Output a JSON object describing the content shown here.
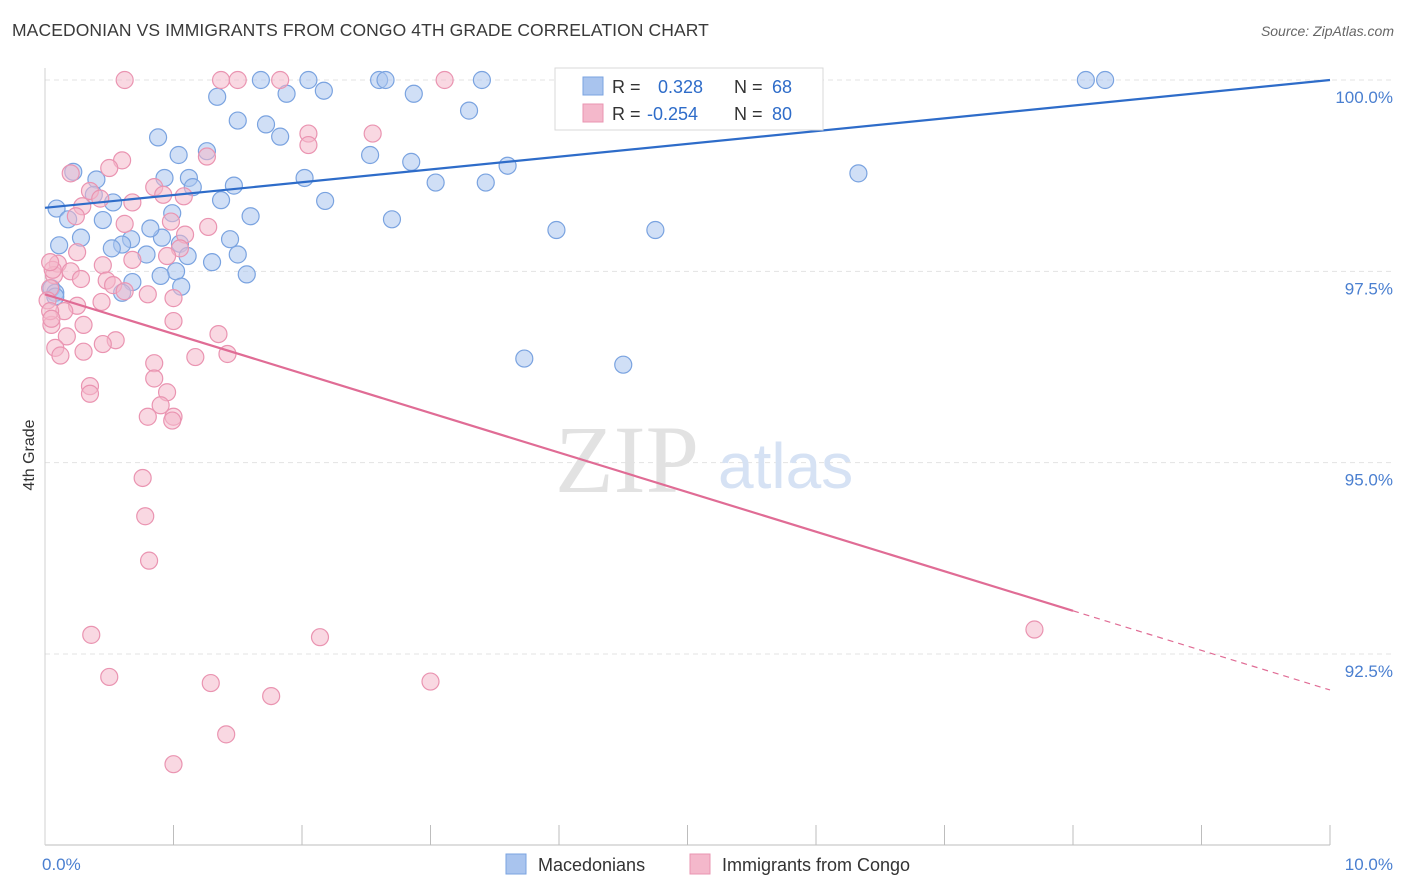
{
  "title": "MACEDONIAN VS IMMIGRANTS FROM CONGO 4TH GRADE CORRELATION CHART",
  "source": "Source: ZipAtlas.com",
  "watermark": {
    "zip": "ZIP",
    "atlas": "atlas"
  },
  "colors": {
    "blue_fill": "#a9c4ee",
    "blue_stroke": "#7aa3e0",
    "blue_line": "#2e6cc9",
    "pink_fill": "#f4b8cb",
    "pink_stroke": "#ea94b1",
    "pink_line": "#e06c95",
    "axis_text": "#4a7fd0",
    "grid": "#e3e3e3"
  },
  "legend": {
    "rows": [
      {
        "r_label": "R =",
        "r_value": "0.328",
        "n_label": "N =",
        "n_value": "68",
        "color": "blue"
      },
      {
        "r_label": "R =",
        "r_value": "-0.254",
        "n_label": "N =",
        "n_value": "80",
        "color": "pink"
      }
    ]
  },
  "bottom_legend": [
    {
      "label": "Macedonians",
      "color": "blue"
    },
    {
      "label": "Immigrants from Congo",
      "color": "pink"
    }
  ],
  "chart_data": {
    "type": "scatter",
    "title": "MACEDONIAN VS IMMIGRANTS FROM CONGO 4TH GRADE CORRELATION CHART",
    "xlabel": "",
    "ylabel": "4th Grade",
    "xlim": [
      0,
      10
    ],
    "ylim": [
      90.5,
      100.3
    ],
    "x_tick_labels": [
      {
        "value": 0,
        "label": "0.0%"
      },
      {
        "value": 10,
        "label": "10.0%"
      }
    ],
    "x_minor_ticks": [
      1,
      2,
      3,
      4,
      5,
      6,
      7,
      8,
      9,
      10
    ],
    "y_ticks": [
      {
        "value": 100,
        "label": "100.0%"
      },
      {
        "value": 97.5,
        "label": "97.5%"
      },
      {
        "value": 95,
        "label": "95.0%"
      },
      {
        "value": 92.5,
        "label": "92.5%"
      }
    ],
    "grid": true,
    "legend_position": "top-center",
    "series": [
      {
        "name": "Macedonians",
        "color": "blue",
        "trend": {
          "x": [
            0,
            10
          ],
          "y": [
            98.33,
            100.0
          ],
          "dashed_from": null
        },
        "points": [
          [
            1.68,
            100.0
          ],
          [
            2.05,
            100.0
          ],
          [
            2.6,
            100.0
          ],
          [
            2.65,
            100.0
          ],
          [
            3.4,
            100.0
          ],
          [
            5.12,
            100.0
          ],
          [
            8.1,
            100.0
          ],
          [
            8.25,
            100.0
          ],
          [
            1.34,
            99.78
          ],
          [
            1.88,
            99.82
          ],
          [
            2.17,
            99.86
          ],
          [
            2.87,
            99.82
          ],
          [
            3.3,
            99.6
          ],
          [
            1.5,
            99.47
          ],
          [
            1.72,
            99.42
          ],
          [
            1.83,
            99.26
          ],
          [
            0.88,
            99.25
          ],
          [
            1.26,
            99.07
          ],
          [
            1.04,
            99.02
          ],
          [
            2.53,
            99.02
          ],
          [
            2.85,
            98.93
          ],
          [
            3.6,
            98.88
          ],
          [
            1.12,
            98.72
          ],
          [
            1.47,
            98.62
          ],
          [
            0.22,
            98.8
          ],
          [
            0.4,
            98.7
          ],
          [
            0.93,
            98.72
          ],
          [
            1.15,
            98.6
          ],
          [
            2.02,
            98.72
          ],
          [
            3.04,
            98.66
          ],
          [
            3.43,
            98.66
          ],
          [
            6.33,
            98.78
          ],
          [
            0.38,
            98.5
          ],
          [
            0.53,
            98.4
          ],
          [
            0.99,
            98.26
          ],
          [
            1.37,
            98.43
          ],
          [
            1.6,
            98.22
          ],
          [
            2.18,
            98.42
          ],
          [
            0.09,
            98.32
          ],
          [
            0.18,
            98.18
          ],
          [
            0.45,
            98.17
          ],
          [
            2.7,
            98.18
          ],
          [
            3.98,
            98.04
          ],
          [
            4.75,
            98.04
          ],
          [
            0.28,
            97.94
          ],
          [
            0.11,
            97.84
          ],
          [
            0.67,
            97.92
          ],
          [
            0.91,
            97.94
          ],
          [
            1.44,
            97.92
          ],
          [
            0.6,
            97.85
          ],
          [
            0.82,
            98.06
          ],
          [
            1.05,
            97.86
          ],
          [
            0.52,
            97.8
          ],
          [
            0.79,
            97.72
          ],
          [
            1.02,
            97.5
          ],
          [
            1.11,
            97.7
          ],
          [
            1.3,
            97.62
          ],
          [
            1.5,
            97.72
          ],
          [
            0.9,
            97.44
          ],
          [
            0.68,
            97.36
          ],
          [
            1.57,
            97.46
          ],
          [
            1.06,
            97.3
          ],
          [
            0.05,
            97.28
          ],
          [
            0.08,
            97.22
          ],
          [
            0.6,
            97.22
          ],
          [
            3.73,
            96.36
          ],
          [
            4.5,
            96.28
          ],
          [
            0.08,
            97.17
          ]
        ]
      },
      {
        "name": "Immigrants from Congo",
        "color": "pink",
        "trend": {
          "x": [
            0,
            10
          ],
          "y": [
            97.2,
            92.03
          ],
          "dashed_from": 8
        },
        "points": [
          [
            0.62,
            100.0
          ],
          [
            1.37,
            100.0
          ],
          [
            1.5,
            100.0
          ],
          [
            1.83,
            100.0
          ],
          [
            3.11,
            100.0
          ],
          [
            2.05,
            99.3
          ],
          [
            2.05,
            99.15
          ],
          [
            2.55,
            99.3
          ],
          [
            1.26,
            99.0
          ],
          [
            0.6,
            98.95
          ],
          [
            0.5,
            98.85
          ],
          [
            0.2,
            98.78
          ],
          [
            0.85,
            98.6
          ],
          [
            0.35,
            98.55
          ],
          [
            0.92,
            98.5
          ],
          [
            1.08,
            98.48
          ],
          [
            0.43,
            98.45
          ],
          [
            0.68,
            98.4
          ],
          [
            0.29,
            98.35
          ],
          [
            0.24,
            98.22
          ],
          [
            0.62,
            98.12
          ],
          [
            1.27,
            98.08
          ],
          [
            0.98,
            98.15
          ],
          [
            1.09,
            97.98
          ],
          [
            1.05,
            97.8
          ],
          [
            0.25,
            97.75
          ],
          [
            0.68,
            97.65
          ],
          [
            0.95,
            97.7
          ],
          [
            0.1,
            97.6
          ],
          [
            0.45,
            97.58
          ],
          [
            0.2,
            97.5
          ],
          [
            0.07,
            97.45
          ],
          [
            0.28,
            97.4
          ],
          [
            0.48,
            97.38
          ],
          [
            0.53,
            97.32
          ],
          [
            0.62,
            97.24
          ],
          [
            0.8,
            97.2
          ],
          [
            0.44,
            97.1
          ],
          [
            0.25,
            97.05
          ],
          [
            0.15,
            96.98
          ],
          [
            1.0,
            97.15
          ],
          [
            1.0,
            96.85
          ],
          [
            0.3,
            96.8
          ],
          [
            0.55,
            96.6
          ],
          [
            0.17,
            96.65
          ],
          [
            0.45,
            96.55
          ],
          [
            0.08,
            96.5
          ],
          [
            0.3,
            96.45
          ],
          [
            1.17,
            96.38
          ],
          [
            1.42,
            96.42
          ],
          [
            0.12,
            96.4
          ],
          [
            0.85,
            96.3
          ],
          [
            0.85,
            96.1
          ],
          [
            1.35,
            96.68
          ],
          [
            0.95,
            95.92
          ],
          [
            0.35,
            96.0
          ],
          [
            0.35,
            95.9
          ],
          [
            0.9,
            95.75
          ],
          [
            1.0,
            95.6
          ],
          [
            0.8,
            95.6
          ],
          [
            0.99,
            95.55
          ],
          [
            0.76,
            94.8
          ],
          [
            0.78,
            94.3
          ],
          [
            0.81,
            93.72
          ],
          [
            0.36,
            92.75
          ],
          [
            0.5,
            92.2
          ],
          [
            1.29,
            92.12
          ],
          [
            1.41,
            91.45
          ],
          [
            1.76,
            91.95
          ],
          [
            2.14,
            92.72
          ],
          [
            3.0,
            92.14
          ],
          [
            1.0,
            91.06
          ],
          [
            7.7,
            92.82
          ],
          [
            0.06,
            97.52
          ],
          [
            0.05,
            96.8
          ],
          [
            0.04,
            97.62
          ],
          [
            0.04,
            97.28
          ],
          [
            0.02,
            97.12
          ],
          [
            0.04,
            96.98
          ],
          [
            0.05,
            96.88
          ]
        ]
      }
    ]
  }
}
